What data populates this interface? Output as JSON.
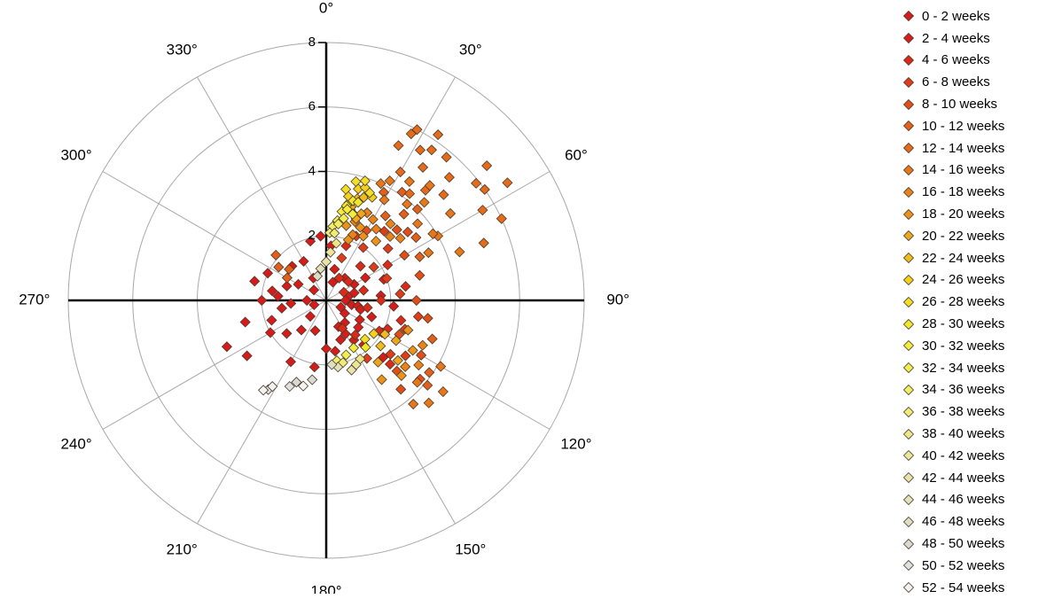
{
  "chart_data": {
    "type": "scatter",
    "coordinate_system": "polar",
    "title": "",
    "radial_axis": {
      "range": [
        0,
        8
      ],
      "tick_labels": [
        "2",
        "4",
        "6",
        "8"
      ]
    },
    "angular_axis": {
      "direction": "clockwise",
      "zero_at": "top",
      "tick_labels": [
        "0°",
        "30°",
        "60°",
        "90°",
        "120°",
        "150°",
        "180°",
        "210°",
        "240°",
        "270°",
        "300°",
        "330°"
      ]
    },
    "grid": true,
    "legend": "right",
    "series": [
      {
        "name": "0 - 2 weeks",
        "color": "#d71a1a",
        "points": [
          [
            220,
            1.2
          ],
          [
            230,
            1.6
          ],
          [
            240,
            2.0
          ],
          [
            250,
            1.8
          ],
          [
            260,
            1.4
          ],
          [
            270,
            2.0
          ],
          [
            280,
            1.7
          ],
          [
            290,
            1.3
          ],
          [
            300,
            1.0
          ],
          [
            315,
            1.5
          ],
          [
            330,
            0.8
          ],
          [
            0,
            1.2
          ],
          [
            20,
            0.6
          ],
          [
            60,
            1.0
          ],
          [
            100,
            0.8
          ],
          [
            140,
            0.9
          ],
          [
            180,
            1.5
          ],
          [
            200,
            1.0
          ],
          [
            210,
            2.2
          ],
          [
            235,
            3.0
          ],
          [
            245,
            3.4
          ],
          [
            255,
            2.6
          ],
          [
            265,
            1.1
          ],
          [
            275,
            1.5
          ],
          [
            285,
            2.3
          ],
          [
            295,
            2.0
          ],
          [
            310,
            0.5
          ],
          [
            345,
            1.9
          ],
          [
            355,
            2.0
          ],
          [
            5,
            1.7
          ],
          [
            15,
            1.0
          ],
          [
            40,
            0.9
          ],
          [
            80,
            0.7
          ],
          [
            120,
            1.2
          ],
          [
            160,
            1.3
          ],
          [
            190,
            2.1
          ],
          [
            225,
            0.7
          ],
          [
            250,
            0.4
          ],
          [
            270,
            0.6
          ],
          [
            330,
            1.4
          ]
        ]
      },
      {
        "name": "2 - 4 weeks",
        "color": "#d81c1c",
        "points": [
          [
            100,
            1.0
          ],
          [
            110,
            1.5
          ],
          [
            120,
            2.0
          ],
          [
            130,
            1.3
          ],
          [
            140,
            1.8
          ],
          [
            150,
            1.2
          ],
          [
            160,
            2.3
          ],
          [
            170,
            1.6
          ],
          [
            60,
            1.4
          ],
          [
            75,
            0.9
          ],
          [
            85,
            1.7
          ],
          [
            95,
            2.1
          ],
          [
            105,
            1.1
          ],
          [
            125,
            0.7
          ],
          [
            145,
            1.5
          ],
          [
            135,
            2.5
          ],
          [
            115,
            0.5
          ],
          [
            155,
            0.9
          ],
          [
            90,
            0.6
          ],
          [
            70,
            1.9
          ]
        ]
      },
      {
        "name": "4 - 6 weeks",
        "color": "#db2a1a",
        "points": [
          [
            30,
            0.8
          ],
          [
            45,
            1.5
          ],
          [
            60,
            2.2
          ],
          [
            75,
            1.2
          ],
          [
            90,
            1.7
          ],
          [
            105,
            2.4
          ],
          [
            120,
            1.9
          ],
          [
            135,
            2.8
          ],
          [
            150,
            1.0
          ],
          [
            20,
            1.8
          ],
          [
            50,
            0.9
          ],
          [
            80,
            2.5
          ],
          [
            100,
            1.3
          ],
          [
            115,
            2.1
          ],
          [
            140,
            1.4
          ],
          [
            65,
            0.6
          ]
        ]
      },
      {
        "name": "6 - 8 weeks",
        "color": "#de3c1a",
        "points": [
          [
            25,
            2.2
          ],
          [
            40,
            2.8
          ],
          [
            55,
            1.8
          ],
          [
            70,
            2.0
          ],
          [
            85,
            2.3
          ],
          [
            110,
            2.6
          ],
          [
            125,
            3.0
          ],
          [
            145,
            2.2
          ],
          [
            20,
            1.4
          ],
          [
            35,
            2.0
          ],
          [
            50,
            2.5
          ],
          [
            130,
            2.6
          ],
          [
            100,
            2.9
          ]
        ]
      },
      {
        "name": "8 - 10 weeks",
        "color": "#e14e1a",
        "points": [
          [
            30,
            2.5
          ],
          [
            45,
            3.1
          ],
          [
            60,
            2.8
          ],
          [
            75,
            3.0
          ],
          [
            100,
            3.2
          ],
          [
            120,
            3.4
          ],
          [
            135,
            3.1
          ],
          [
            140,
            3.6
          ],
          [
            25,
            3.0
          ],
          [
            50,
            3.3
          ],
          [
            90,
            2.8
          ],
          [
            115,
            2.5
          ],
          [
            130,
            3.8
          ]
        ]
      },
      {
        "name": "10 - 12 weeks",
        "color": "#e35f1a",
        "points": [
          [
            20,
            3.4
          ],
          [
            28,
            3.8
          ],
          [
            35,
            3.2
          ],
          [
            42,
            3.6
          ],
          [
            55,
            3.4
          ],
          [
            65,
            3.2
          ],
          [
            110,
            3.5
          ],
          [
            125,
            3.9
          ],
          [
            130,
            4.1
          ],
          [
            305,
            1.8
          ],
          [
            310,
            1.5
          ],
          [
            300,
            1.4
          ],
          [
            312,
            2.1
          ],
          [
            35,
            4.1
          ],
          [
            45,
            4.0
          ],
          [
            15,
            2.9
          ]
        ]
      },
      {
        "name": "12 - 14 weeks",
        "color": "#e56a1a",
        "points": [
          [
            25,
            5.3
          ],
          [
            28,
            6.0
          ],
          [
            32,
            5.5
          ],
          [
            34,
            6.2
          ],
          [
            36,
            5.1
          ],
          [
            30,
            4.6
          ],
          [
            38,
            4.2
          ],
          [
            40,
            5.8
          ],
          [
            42,
            4.6
          ],
          [
            45,
            5.4
          ],
          [
            48,
            4.9
          ],
          [
            50,
            6.5
          ],
          [
            52,
            5.9
          ],
          [
            55,
            6.0
          ],
          [
            57,
            6.7
          ],
          [
            60,
            5.6
          ],
          [
            65,
            6.0
          ],
          [
            70,
            5.2
          ],
          [
            27,
            5.8
          ],
          [
            35,
            5.7
          ]
        ]
      },
      {
        "name": "14 - 16 weeks",
        "color": "#e8771a",
        "points": [
          [
            25,
            4.0
          ],
          [
            30,
            3.6
          ],
          [
            35,
            4.5
          ],
          [
            40,
            3.9
          ],
          [
            45,
            4.3
          ],
          [
            50,
            3.7
          ],
          [
            55,
            4.7
          ],
          [
            60,
            4.0
          ],
          [
            65,
            3.5
          ],
          [
            70,
            4.4
          ],
          [
            28,
            4.2
          ],
          [
            42,
            4.8
          ],
          [
            58,
            3.9
          ],
          [
            120,
            4.1
          ],
          [
            128,
            4.6
          ],
          [
            135,
            4.5
          ],
          [
            140,
            4.2
          ],
          [
            132,
            3.8
          ]
        ]
      },
      {
        "name": "16 - 18 weeks",
        "color": "#ea821a",
        "points": [
          [
            20,
            2.6
          ],
          [
            25,
            3.0
          ],
          [
            30,
            2.9
          ],
          [
            35,
            2.7
          ],
          [
            40,
            3.1
          ],
          [
            45,
            2.8
          ],
          [
            50,
            3.0
          ],
          [
            115,
            3.3
          ],
          [
            125,
            3.5
          ],
          [
            130,
            3.2
          ],
          [
            18,
            3.2
          ],
          [
            22,
            2.2
          ]
        ]
      },
      {
        "name": "18 - 20 weeks",
        "color": "#ec921a",
        "points": [
          [
            15,
            2.4
          ],
          [
            20,
            2.0
          ],
          [
            30,
            2.3
          ],
          [
            40,
            2.4
          ],
          [
            110,
            2.7
          ],
          [
            120,
            3.1
          ],
          [
            135,
            3.3
          ],
          [
            145,
            3.0
          ],
          [
            18,
            2.8
          ],
          [
            25,
            2.5
          ]
        ]
      },
      {
        "name": "20 - 22 weeks",
        "color": "#eda61e",
        "points": [
          [
            15,
            3.0
          ],
          [
            20,
            2.7
          ],
          [
            22,
            2.9
          ],
          [
            120,
            2.5
          ],
          [
            130,
            2.9
          ],
          [
            140,
            2.5
          ]
        ]
      },
      {
        "name": "22 - 24 weeks",
        "color": "#efbc1e",
        "points": [
          [
            13,
            3.1
          ],
          [
            17,
            3.3
          ],
          [
            20,
            3.4
          ],
          [
            120,
            2.1
          ],
          [
            130,
            2.2
          ]
        ]
      },
      {
        "name": "24 - 26 weeks",
        "color": "#f1d01e",
        "points": [
          [
            12,
            3.3
          ],
          [
            16,
            3.6
          ],
          [
            19,
            3.7
          ],
          [
            24,
            3.5
          ],
          [
            125,
            1.8
          ]
        ]
      },
      {
        "name": "26 - 28 weeks",
        "color": "#f2df24",
        "points": [
          [
            10,
            3.5
          ],
          [
            14,
            3.8
          ],
          [
            18,
            3.9
          ],
          [
            22,
            3.6
          ],
          [
            135,
            1.7
          ]
        ]
      },
      {
        "name": "28 - 30 weeks",
        "color": "#f2e82a",
        "points": [
          [
            12,
            3.0
          ],
          [
            15,
            3.2
          ],
          [
            18,
            3.2
          ],
          [
            140,
            1.9
          ]
        ]
      },
      {
        "name": "30 - 32 weeks",
        "color": "#f2ec3c",
        "points": [
          [
            10,
            2.8
          ],
          [
            13,
            2.9
          ],
          [
            17,
            2.8
          ],
          [
            150,
            1.7
          ]
        ]
      },
      {
        "name": "32 - 34 weeks",
        "color": "#f2ee50",
        "points": [
          [
            8,
            2.5
          ],
          [
            12,
            2.6
          ],
          [
            160,
            1.8
          ]
        ]
      },
      {
        "name": "34 - 36 weeks",
        "color": "#f0ee64",
        "points": [
          [
            5,
            2.3
          ],
          [
            9,
            2.4
          ],
          [
            170,
            1.9
          ]
        ]
      },
      {
        "name": "36 - 38 weeks",
        "color": "#eeeb78",
        "points": [
          [
            3,
            2.1
          ],
          [
            7,
            2.1
          ],
          [
            165,
            2.0
          ]
        ]
      },
      {
        "name": "38 - 40 weeks",
        "color": "#ece88a",
        "points": [
          [
            10,
            1.8
          ],
          [
            150,
            2.1
          ]
        ]
      },
      {
        "name": "40 - 42 weeks",
        "color": "#eae79a",
        "points": [
          [
            5,
            1.5
          ],
          [
            155,
            2.2
          ]
        ]
      },
      {
        "name": "42 - 44 weeks",
        "color": "#e6e4aa",
        "points": [
          [
            0,
            1.2
          ],
          [
            160,
            2.3
          ]
        ]
      },
      {
        "name": "44 - 46 weeks",
        "color": "#e2e2b8",
        "points": [
          [
            350,
            1.0
          ],
          [
            170,
            2.1
          ]
        ]
      },
      {
        "name": "46 - 48 weeks",
        "color": "#dedec6",
        "points": [
          [
            340,
            0.8
          ],
          [
            175,
            2.0
          ]
        ]
      },
      {
        "name": "48 - 50 weeks",
        "color": "#dadad2",
        "points": [
          [
            200,
            2.7
          ],
          [
            190,
            2.5
          ]
        ]
      },
      {
        "name": "50 - 52 weeks",
        "color": "#e0e0e0",
        "points": [
          [
            213,
            3.3
          ],
          [
            203,
            2.9
          ]
        ]
      },
      {
        "name": "52 - 54 weeks",
        "color": "#f2f2f2",
        "points": [
          [
            215,
            3.4
          ],
          [
            212,
            3.15
          ],
          [
            195,
            2.75
          ]
        ]
      }
    ]
  }
}
